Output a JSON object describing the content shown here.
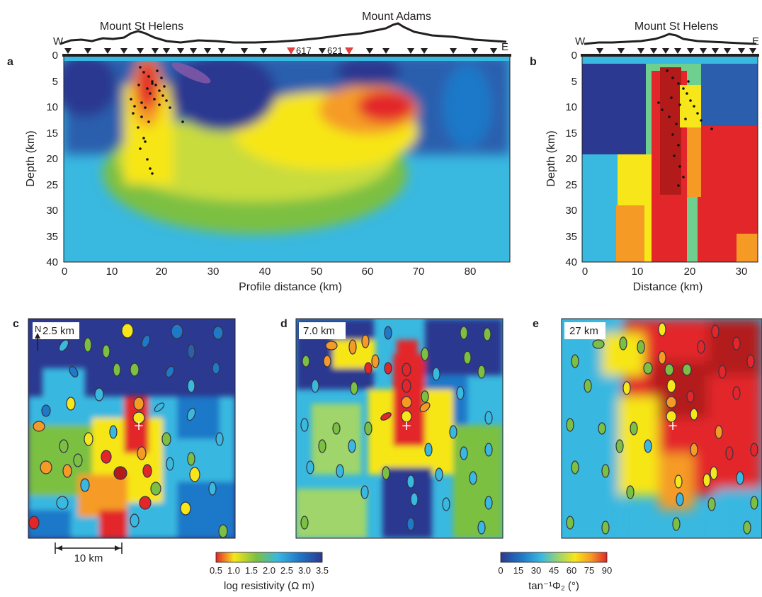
{
  "figure": {
    "panel_a": {
      "letter": "a",
      "peak_left": "Mount St Helens",
      "peak_right": "Mount Adams",
      "west": "W",
      "east": "E",
      "station_label_1": "617",
      "station_label_2": "621",
      "ylabel": "Depth (km)",
      "xlabel": "Profile distance (km)",
      "xticks": [
        "0",
        "10",
        "20",
        "30",
        "40",
        "50",
        "60",
        "70",
        "80"
      ],
      "yticks": [
        "0",
        "5",
        "10",
        "15",
        "20",
        "25",
        "30",
        "35",
        "40"
      ]
    },
    "panel_b": {
      "letter": "b",
      "peak": "Mount St Helens",
      "west": "W",
      "east": "E",
      "ylabel": "Depth (km)",
      "xlabel": "Distance (km)",
      "xticks": [
        "0",
        "10",
        "20",
        "30"
      ],
      "yticks": [
        "0",
        "5",
        "10",
        "15",
        "20",
        "25",
        "30",
        "35",
        "40"
      ]
    },
    "panel_c": {
      "letter": "c",
      "depth": "2.5 km",
      "north": "N",
      "scale": "10 km"
    },
    "panel_d": {
      "letter": "d",
      "depth": "7.0 km"
    },
    "panel_e": {
      "letter": "e",
      "depth": "27 km"
    },
    "colorbar_resistivity": {
      "ticks": [
        "0.5",
        "1.0",
        "1.5",
        "2.0",
        "2.5",
        "3.0",
        "3.5"
      ],
      "label": "log resistivity (Ω m)"
    },
    "colorbar_phase": {
      "ticks": [
        "0",
        "15",
        "30",
        "45",
        "60",
        "75",
        "90"
      ],
      "label": "tan⁻¹Φ₂ (°)"
    },
    "colors": {
      "deep_blue": "#2b3990",
      "blue": "#1f78c8",
      "cyan": "#39b8e0",
      "green": "#7bc043",
      "yellow": "#f7e619",
      "orange": "#f59b25",
      "red": "#e3262a",
      "dark_red": "#b31b1b",
      "station_red": "#e04040"
    }
  }
}
